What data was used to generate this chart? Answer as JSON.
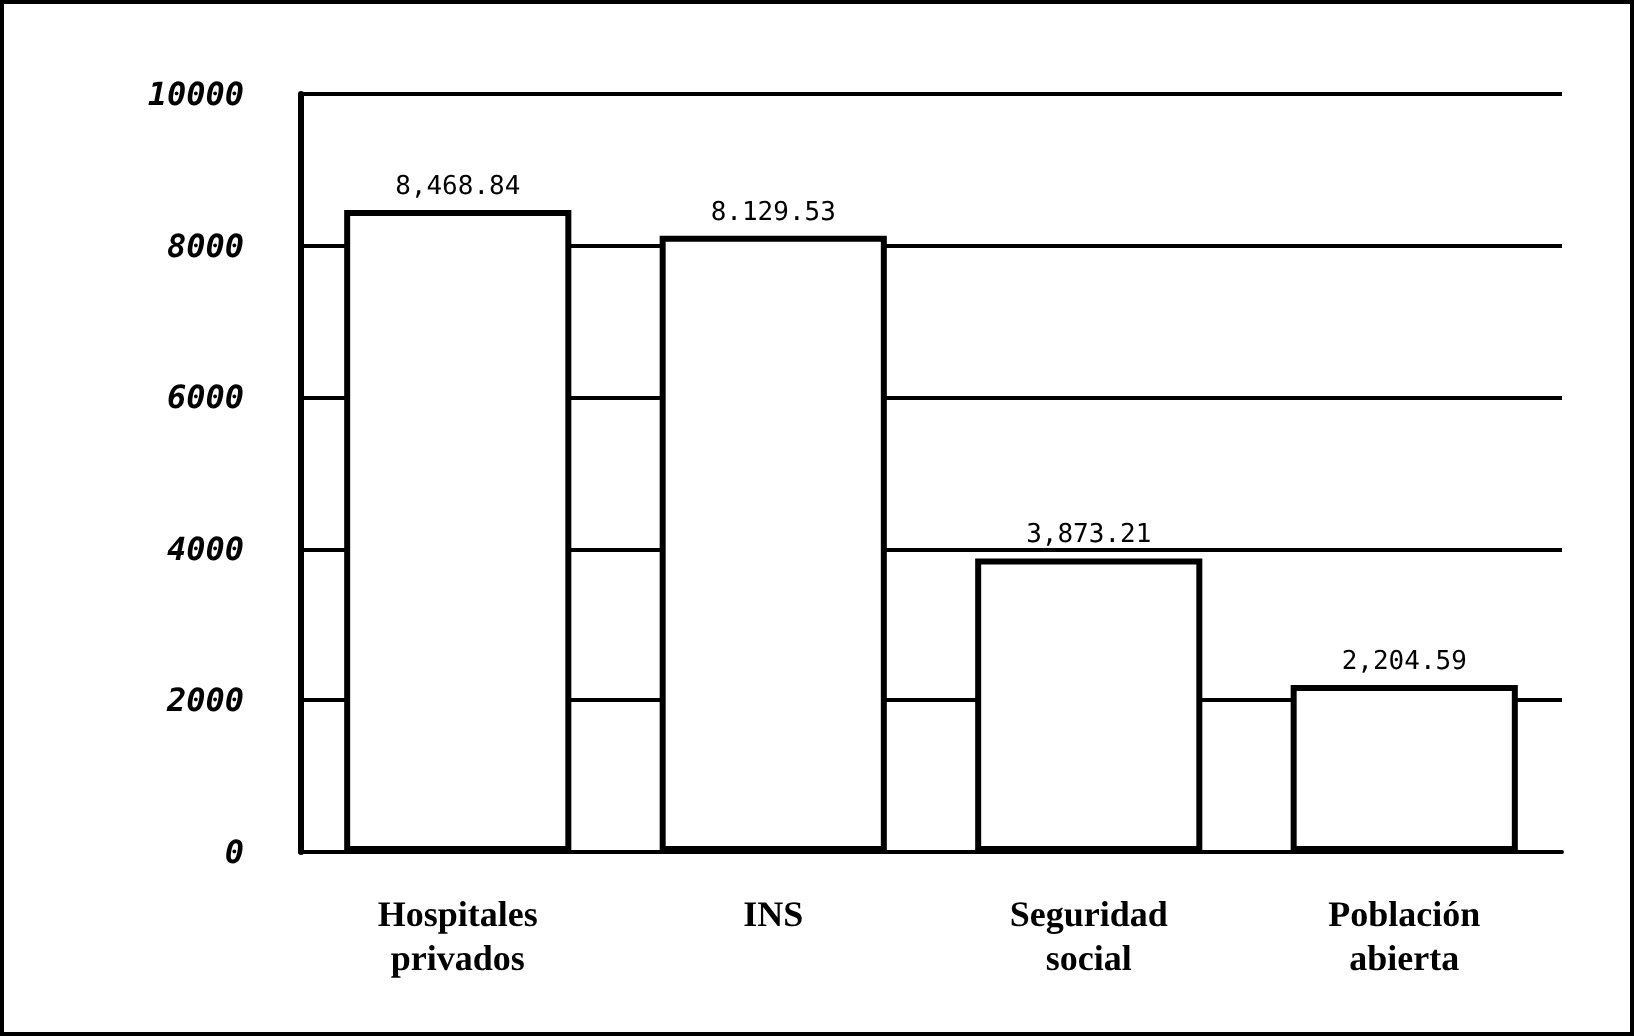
{
  "chart_data": {
    "type": "bar",
    "categories": [
      "Hospitales\nprivados",
      "INS",
      "Seguridad\nsocial",
      "Población\nabierta"
    ],
    "values": [
      8468.84,
      8129.53,
      3873.21,
      2204.59
    ],
    "value_labels": [
      "8,468.84",
      "8.129.53",
      "3,873.21",
      "2,204.59"
    ],
    "color": "#ffffff",
    "ylim": [
      0,
      10000
    ],
    "yticks": [
      0,
      2000,
      4000,
      6000,
      8000,
      10000
    ],
    "grid": "y"
  }
}
